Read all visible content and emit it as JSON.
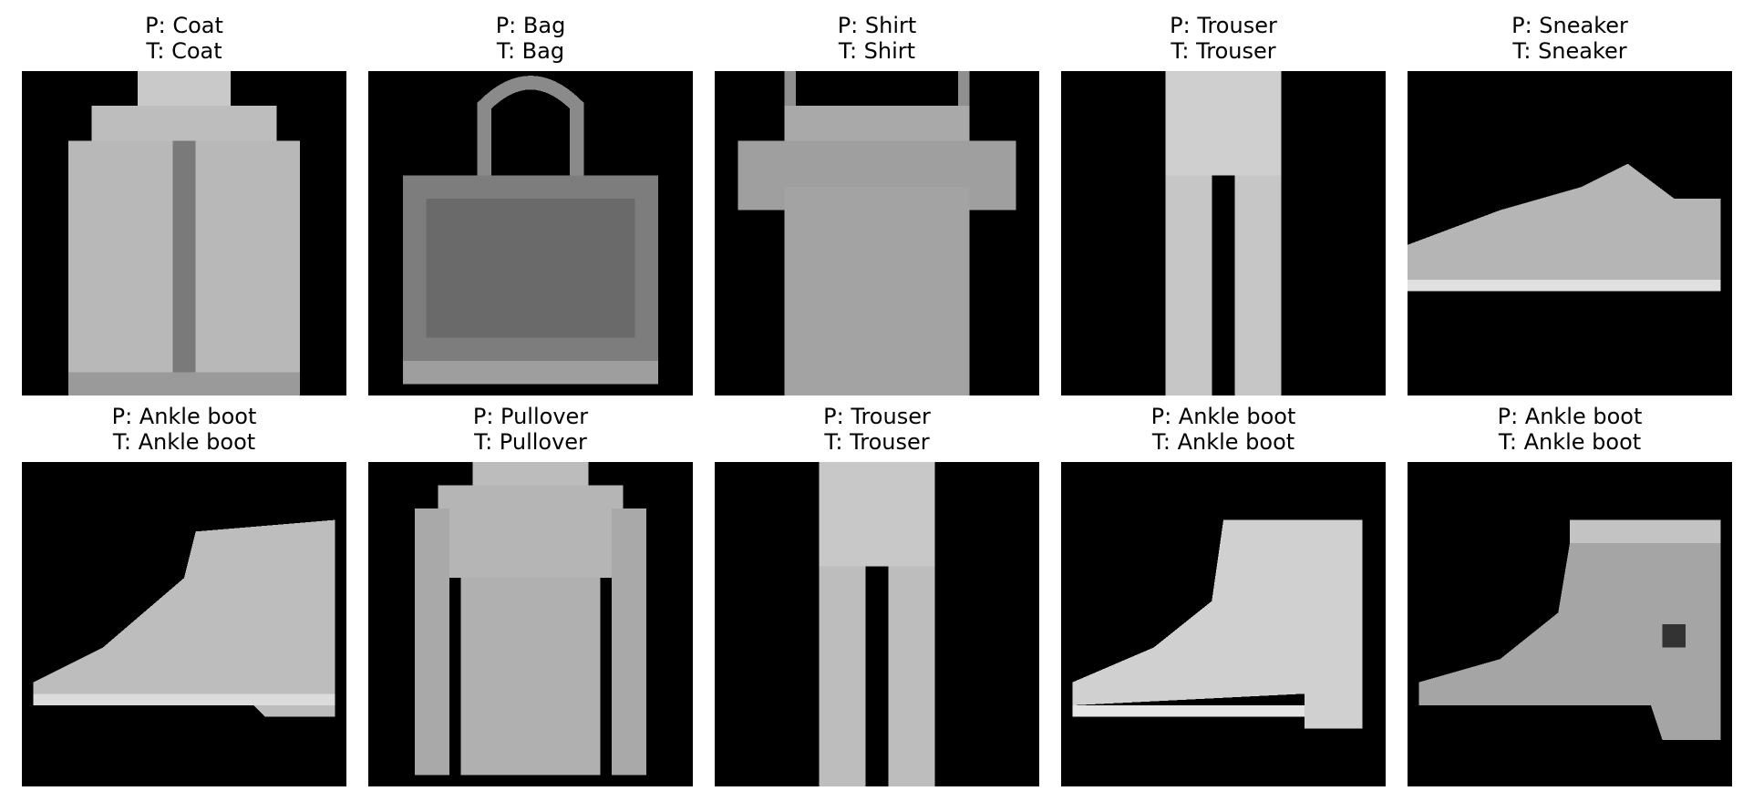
{
  "figure": {
    "background": "#ffffff",
    "colormap": "gray",
    "items": [
      {
        "pred": "P: Coat",
        "true": "T: Coat",
        "shape": "coat"
      },
      {
        "pred": "P: Bag",
        "true": "T: Bag",
        "shape": "bag"
      },
      {
        "pred": "P: Shirt",
        "true": "T: Shirt",
        "shape": "shirt"
      },
      {
        "pred": "P: Trouser",
        "true": "T: Trouser",
        "shape": "trouser"
      },
      {
        "pred": "P: Sneaker",
        "true": "T: Sneaker",
        "shape": "sneaker"
      },
      {
        "pred": "P: Ankle boot",
        "true": "T: Ankle boot",
        "shape": "boot"
      },
      {
        "pred": "P: Pullover",
        "true": "T: Pullover",
        "shape": "pullover"
      },
      {
        "pred": "P: Trouser",
        "true": "T: Trouser",
        "shape": "trouser2"
      },
      {
        "pred": "P: Ankle boot",
        "true": "T: Ankle boot",
        "shape": "boot2"
      },
      {
        "pred": "P: Ankle boot",
        "true": "T: Ankle boot",
        "shape": "boot3"
      }
    ]
  }
}
